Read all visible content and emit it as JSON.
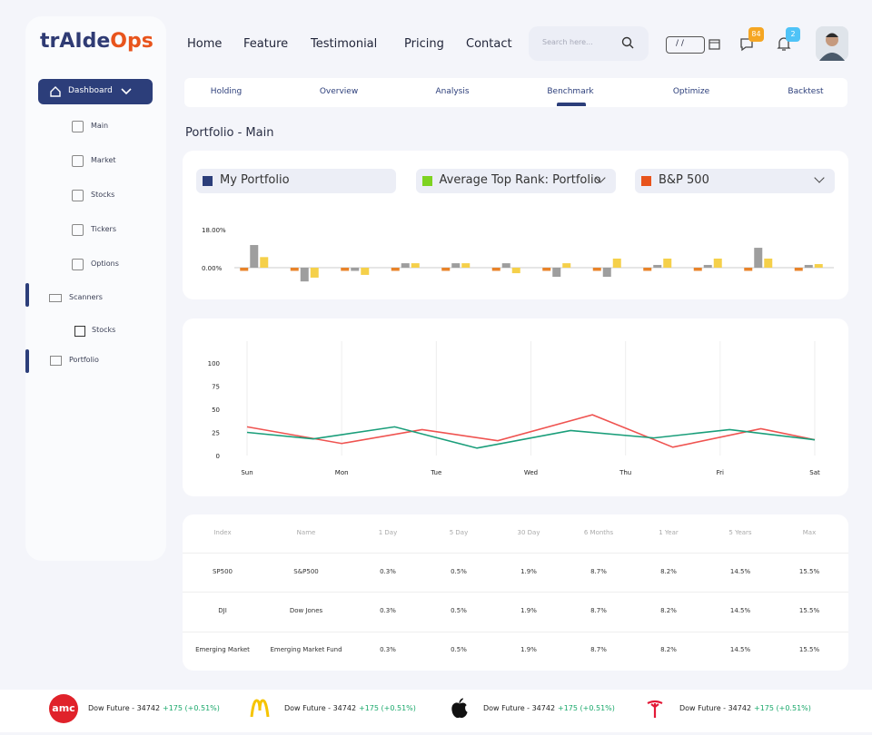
{
  "logo": {
    "prefix": "trAIde",
    "suffix": "Ops"
  },
  "nav": [
    "Home",
    "Feature",
    "Testimonial",
    "Pricing",
    "Contact"
  ],
  "search_placeholder": "Search here...",
  "date_placeholder": "/ /",
  "badges": {
    "messages": "84",
    "notifications": "2"
  },
  "sidebar": {
    "dashboard": "Dashboard",
    "items": [
      "Main",
      "Market",
      "Stocks",
      "Tickers",
      "Options"
    ],
    "scanners": "Scanners",
    "scanner_items": [
      "Stocks"
    ],
    "portfolio": "Portfolio"
  },
  "tabs": [
    "Holding",
    "Overview",
    "Analysis",
    "Benchmark",
    "Optimize",
    "Backtest"
  ],
  "page_title": "Portfolio - Main",
  "selectors": [
    {
      "label": "My Portfolio",
      "color": "#2c3e7a"
    },
    {
      "label": "Average Top Rank: Portfolio",
      "color": "#7ed321"
    },
    {
      "label": "B&P 500",
      "color": "#e8541c"
    }
  ],
  "chart_data": [
    {
      "type": "bar",
      "ylim": [
        -8,
        20
      ],
      "yticks": [
        {
          "value": 0,
          "label": "0.00%"
        },
        {
          "value": 18,
          "label": "18.00%"
        }
      ],
      "series": [
        {
          "color": "#e8832a",
          "values": [
            -1.5,
            -1.5,
            -1.5,
            -1.5,
            -1.5,
            -1.5,
            -1.5,
            -1.5,
            -1.5,
            -1.5,
            -1.5,
            -1.5
          ]
        },
        {
          "color": "#9e9e9e",
          "values": [
            10.7,
            -6.5,
            -1.5,
            2.1,
            2.1,
            2.1,
            -4.3,
            -4.3,
            1.3,
            1.3,
            9.4,
            1.3
          ]
        },
        {
          "color": "#f5d04a",
          "values": [
            5,
            -4.7,
            -3.4,
            2.1,
            2.1,
            -2.6,
            2.1,
            4.3,
            4.3,
            4.3,
            4.3,
            1.7
          ]
        }
      ]
    },
    {
      "type": "line",
      "xlim": [
        0,
        6
      ],
      "xticks": [
        {
          "value": 0,
          "label": "Sun"
        },
        {
          "value": 1,
          "label": "Mon"
        },
        {
          "value": 2,
          "label": "Tue"
        },
        {
          "value": 3,
          "label": "Wed"
        },
        {
          "value": 4,
          "label": "Thu"
        },
        {
          "value": 5,
          "label": "Fri"
        },
        {
          "value": 6,
          "label": "Sat"
        }
      ],
      "ylim": [
        0,
        100
      ],
      "yticks": [
        0,
        25,
        50,
        75,
        100
      ],
      "series": [
        {
          "color": "#ef5350",
          "x": [
            0,
            1,
            1.85,
            2.65,
            3.65,
            4.5,
            5.43,
            6
          ],
          "values": [
            31,
            13,
            28,
            16,
            44,
            9,
            29,
            17
          ]
        },
        {
          "color": "#1a9e7a",
          "x": [
            0,
            0.7,
            1.56,
            2.43,
            3.42,
            4.3,
            5.1,
            6
          ],
          "values": [
            25,
            18,
            31,
            8,
            27,
            19,
            28,
            17
          ]
        }
      ]
    }
  ],
  "table": {
    "header": [
      "Index",
      "Name",
      "1 Day",
      "5 Day",
      "30 Day",
      "6 Months",
      "1 Year",
      "5 Years",
      "Max"
    ],
    "rows": [
      [
        "SP500",
        "S&P500",
        "0.3%",
        "0.5%",
        "1.9%",
        "8.7%",
        "8.2%",
        "14.5%",
        "15.5%"
      ],
      [
        "DJI",
        "Dow Jones",
        "0.3%",
        "0.5%",
        "1.9%",
        "8.7%",
        "8.2%",
        "14.5%",
        "15.5%"
      ],
      [
        "Emerging Market",
        "Emerging Market Fund",
        "0.3%",
        "0.5%",
        "1.9%",
        "8.7%",
        "8.2%",
        "14.5%",
        "15.5%"
      ]
    ]
  },
  "ticker": [
    {
      "logo": "amc",
      "name": "Dow Future - 34742",
      "change": "+175 (+0.51%)"
    },
    {
      "name": "Dow Future - 34742",
      "change": "+175 (+0.51%)"
    },
    {
      "name": "Dow Future - 34742",
      "change": "+175 (+0.51%)"
    },
    {
      "name": "Dow Future - 34742",
      "change": "+175 (+0.51%)"
    }
  ]
}
